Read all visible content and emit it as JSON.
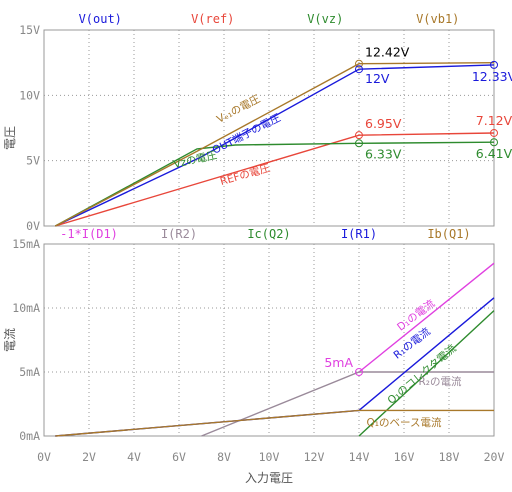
{
  "chart_data": [
    {
      "type": "line",
      "ylabel": "電圧",
      "xlim": [
        0,
        20
      ],
      "ylim": [
        0,
        15
      ],
      "y_ticks": [
        "0V",
        "5V",
        "10V",
        "15V"
      ],
      "grid": true,
      "legend_position": "top",
      "series": [
        {
          "name": "V(out)",
          "color": "#1a1adb",
          "points": [
            [
              0.5,
              0
            ],
            [
              7,
              5.3
            ],
            [
              14,
              12
            ],
            [
              20,
              12.33
            ]
          ],
          "curve_label": "OUT端子の電圧"
        },
        {
          "name": "V(ref)",
          "color": "#e8463a",
          "points": [
            [
              0.5,
              0
            ],
            [
              14,
              6.95
            ],
            [
              20,
              7.12
            ]
          ],
          "curve_label": "REFの電圧"
        },
        {
          "name": "V(vz)",
          "color": "#2e8b2e",
          "points": [
            [
              0.5,
              0
            ],
            [
              6.8,
              5.9
            ],
            [
              8.5,
              6.2
            ],
            [
              14,
              6.33
            ],
            [
              20,
              6.41
            ]
          ],
          "curve_label": "Vzの電圧"
        },
        {
          "name": "V(vb1)",
          "color": "#a8782a",
          "points": [
            [
              0.5,
              0
            ],
            [
              7,
              5.9
            ],
            [
              14,
              12.42
            ],
            [
              20,
              12.5
            ]
          ],
          "curve_label": "Vₑ₁の電圧"
        }
      ],
      "annotations": [
        {
          "x": 14,
          "y": 12.42,
          "text": "12.42V",
          "color": "#000000",
          "marker_color": "#a8782a"
        },
        {
          "x": 14,
          "y": 12,
          "text": "12V",
          "color": "#1a1adb",
          "marker_color": "#1a1adb"
        },
        {
          "x": 20,
          "y": 12.33,
          "text": "12.33V",
          "color": "#1a1adb",
          "marker_color": "#1a1adb"
        },
        {
          "x": 14,
          "y": 6.95,
          "text": "6.95V",
          "color": "#e8463a",
          "marker_color": "#e8463a"
        },
        {
          "x": 20,
          "y": 7.12,
          "text": "7.12V",
          "color": "#e8463a",
          "marker_color": "#e8463a"
        },
        {
          "x": 14,
          "y": 6.33,
          "text": "6.33V",
          "color": "#2e8b2e",
          "marker_color": "#2e8b2e"
        },
        {
          "x": 20,
          "y": 6.41,
          "text": "6.41V",
          "color": "#2e8b2e",
          "marker_color": "#2e8b2e"
        }
      ]
    },
    {
      "type": "line",
      "xlabel": "入力電圧",
      "ylabel": "電流",
      "xlim": [
        0,
        20
      ],
      "ylim": [
        0,
        15
      ],
      "x_ticks": [
        "0V",
        "2V",
        "4V",
        "6V",
        "8V",
        "10V",
        "12V",
        "14V",
        "16V",
        "18V",
        "20V"
      ],
      "y_ticks": [
        "0mA",
        "5mA",
        "10mA",
        "15mA"
      ],
      "grid": true,
      "legend_position": "top",
      "series": [
        {
          "name": "-1*I(D1)",
          "color": "#e040e0",
          "points": [
            [
              14,
              5
            ],
            [
              20,
              13.5
            ]
          ],
          "curve_label": "D₁の電流"
        },
        {
          "name": "I(R2)",
          "color": "#9a8a9a",
          "points": [
            [
              7,
              0
            ],
            [
              14,
              5
            ],
            [
              20,
              5
            ]
          ],
          "curve_label": "R₂の電流"
        },
        {
          "name": "Ic(Q2)",
          "color": "#2e8b2e",
          "points": [
            [
              14,
              0
            ],
            [
              20,
              9.8
            ]
          ],
          "curve_label": "Q₁のコレクタ電流"
        },
        {
          "name": "I(R1)",
          "color": "#1a1adb",
          "points": [
            [
              0.5,
              0
            ],
            [
              14,
              2
            ],
            [
              20,
              10.8
            ]
          ],
          "curve_label": "R₁の電流"
        },
        {
          "name": "Ib(Q1)",
          "color": "#a8782a",
          "points": [
            [
              0.5,
              0
            ],
            [
              14,
              2
            ],
            [
              20,
              2
            ]
          ],
          "curve_label": "Q₁のベース電流"
        }
      ],
      "annotations": [
        {
          "x": 14,
          "y": 5,
          "text": "5mA",
          "color": "#e040e0",
          "marker_color": "#e040e0"
        }
      ]
    }
  ]
}
